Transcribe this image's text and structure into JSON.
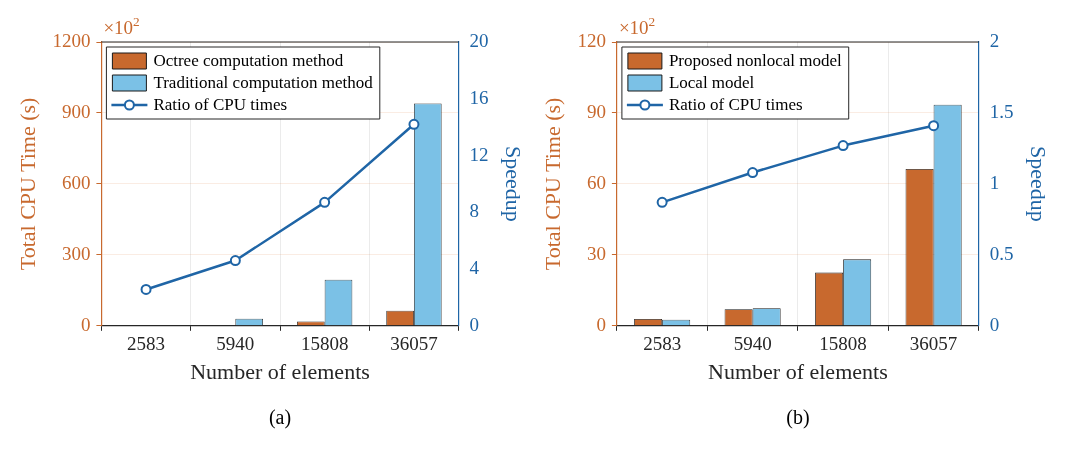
{
  "chart_data": [
    {
      "type": "bar",
      "xlabel": "Number of elements",
      "ylabel": "Total CPU Time (s)",
      "y2label": "Speedup",
      "categories": [
        "2583",
        "5940",
        "15808",
        "36057"
      ],
      "series": [
        {
          "name": "Octree computation method",
          "color": "#c8692e",
          "values": [
            null,
            null,
            18,
            64
          ]
        },
        {
          "name": "Traditional computation method",
          "color": "#7bc1e6",
          "values": [
            null,
            30,
            195,
            940
          ]
        },
        {
          "name": "Ratio of CPU times",
          "type": "line",
          "axis": "y2",
          "color": "#1f65a6",
          "values": [
            2.56,
            4.6,
            8.7,
            14.2
          ]
        }
      ],
      "ylim": [
        0,
        1200
      ],
      "yticks": [
        0,
        300,
        600,
        900,
        1200
      ],
      "y2lim": [
        0,
        20
      ],
      "y2ticks": [
        0,
        4,
        8,
        12,
        16,
        20
      ],
      "grid": true,
      "legend": "top left",
      "marker": "circle",
      "line_style": "solid",
      "annotations": [
        "×10$^{2}$",
        "(a)"
      ]
    },
    {
      "type": "bar",
      "xlabel": "Number of elements",
      "ylabel": "Total CPU Time (s)",
      "y2label": "Speedup",
      "categories": [
        "2583",
        "5940",
        "15808",
        "36057"
      ],
      "series": [
        {
          "name": "Proposed nonlocal model",
          "color": "#c8692e",
          "values": [
            2.9,
            7.0,
            22.5,
            66.3
          ]
        },
        {
          "name": "Local model",
          "color": "#7bc1e6",
          "values": [
            2.6,
            7.4,
            28.1,
            93.5
          ]
        },
        {
          "name": "Ratio of CPU times",
          "type": "line",
          "axis": "y2",
          "color": "#1f65a6",
          "values": [
            0.87,
            1.08,
            1.27,
            1.41
          ]
        }
      ],
      "ylim": [
        0,
        120
      ],
      "yticks": [
        0,
        30,
        60,
        90,
        120
      ],
      "y2lim": [
        0,
        2
      ],
      "y2ticks": [
        0,
        0.5,
        1,
        1.5,
        2
      ],
      "grid": true,
      "legend": "top left",
      "marker": "circle",
      "line_style": "solid",
      "annotations": [
        "×10$^{2}$",
        "(b)"
      ]
    }
  ]
}
